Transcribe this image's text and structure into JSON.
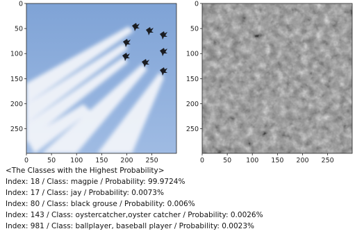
{
  "panels": [
    {
      "xlim": [
        0,
        299
      ],
      "ylim": [
        0,
        299
      ],
      "xticks": [
        0,
        50,
        100,
        150,
        200,
        250
      ],
      "yticks": [
        0,
        50,
        100,
        150,
        200,
        250
      ]
    },
    {
      "xlim": [
        0,
        299
      ],
      "ylim": [
        0,
        299
      ],
      "xticks": [
        0,
        50,
        100,
        150,
        200,
        250
      ],
      "yticks": [
        0,
        50,
        100,
        150,
        200,
        250
      ]
    }
  ],
  "results": {
    "heading": "<The Classes with the Highest Probability>",
    "lines": [
      "Index: 18 / Class: magpie / Probability: 99.9724%",
      "Index: 17 / Class: jay / Probability: 0.0073%",
      "Index: 80 / Class: black grouse / Probability: 0.006%",
      "Index: 143 / Class: oystercatcher,oyster catcher / Probability: 0.0026%",
      "Index: 981 / Class: ballplayer, baseball player / Probability: 0.0023%"
    ]
  }
}
